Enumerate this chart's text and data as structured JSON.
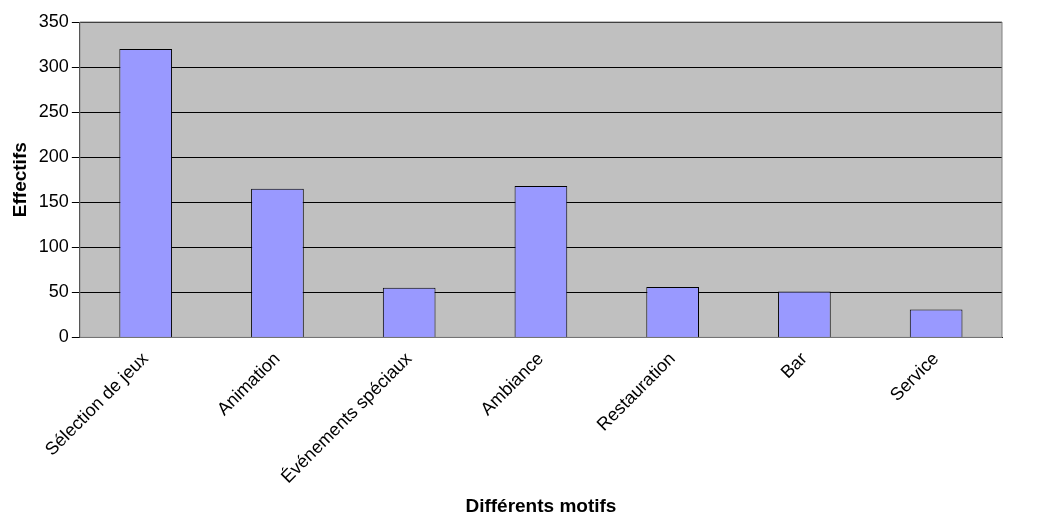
{
  "chart_data": {
    "type": "bar",
    "xlabel": "Différents motifs",
    "ylabel": "Effectifs",
    "categories": [
      "Sélection de jeux",
      "Animation",
      "Événements spéciaux",
      "Ambiance",
      "Restauration",
      "Bar",
      "Service"
    ],
    "values": [
      320,
      165,
      55,
      168,
      56,
      51,
      31
    ],
    "color": "#9999ff",
    "ylim": [
      0,
      350
    ],
    "yticks": [
      0,
      50,
      100,
      150,
      200,
      250,
      300,
      350
    ],
    "grid": "y",
    "legend": false
  }
}
